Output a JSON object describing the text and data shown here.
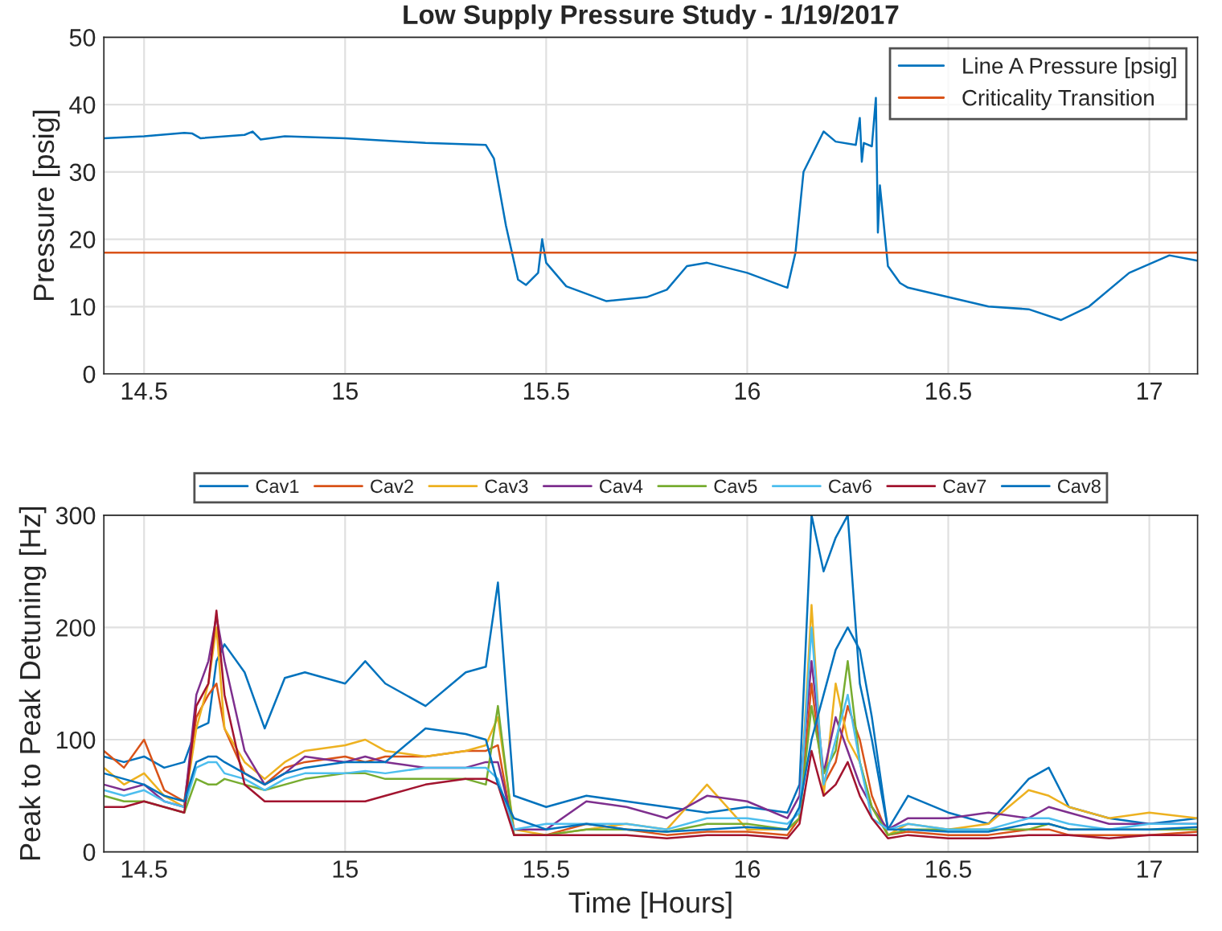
{
  "chart_data": [
    {
      "type": "line",
      "title": "Low Supply Pressure Study - 1/19/2017",
      "ylabel": "Pressure [psig]",
      "x": [
        14.4,
        14.5,
        14.6,
        14.62,
        14.64,
        14.75,
        14.77,
        14.79,
        14.85,
        15.0,
        15.2,
        15.35,
        15.37,
        15.4,
        15.43,
        15.45,
        15.48,
        15.49,
        15.5,
        15.55,
        15.65,
        15.75,
        15.8,
        15.85,
        15.9,
        16.0,
        16.09,
        16.1,
        16.12,
        16.14,
        16.19,
        16.22,
        16.27,
        16.28,
        16.285,
        16.29,
        16.31,
        16.32,
        16.325,
        16.33,
        16.35,
        16.38,
        16.4,
        16.6,
        16.7,
        16.78,
        16.85,
        16.95,
        17.05,
        17.12
      ],
      "series": [
        {
          "name": "Line A Pressure [psig]",
          "color": "#0072bd",
          "values": [
            35,
            35.3,
            35.8,
            35.7,
            35,
            35.5,
            36,
            34.8,
            35.3,
            35,
            34.3,
            34,
            32,
            22,
            14,
            13.2,
            15,
            20,
            16.5,
            13,
            10.8,
            11.4,
            12.5,
            16,
            16.5,
            15,
            13,
            12.8,
            18,
            30,
            36,
            34.5,
            34,
            38,
            31.5,
            34.3,
            33.8,
            41,
            21,
            28,
            16,
            13.5,
            12.8,
            10,
            9.6,
            8,
            10,
            15,
            17.6,
            16.8
          ]
        }
      ],
      "ref_lines": [
        {
          "axis": "y",
          "value": 18,
          "label": "Criticality Transition",
          "color": "#d95319"
        }
      ],
      "xlim": [
        14.4,
        17.12
      ],
      "xticks": [
        14.5,
        15,
        15.5,
        16,
        16.5,
        17
      ],
      "ylim": [
        0,
        50
      ],
      "yticks": [
        0,
        10,
        20,
        30,
        40,
        50
      ],
      "grid": true,
      "legend": "top right"
    },
    {
      "type": "line",
      "xlabel": "Time [Hours]",
      "ylabel": "Peak to Peak Detuning [Hz]",
      "x": [
        14.4,
        14.45,
        14.5,
        14.55,
        14.6,
        14.63,
        14.66,
        14.68,
        14.7,
        14.75,
        14.8,
        14.85,
        14.9,
        15.0,
        15.05,
        15.1,
        15.2,
        15.3,
        15.35,
        15.38,
        15.42,
        15.5,
        15.6,
        15.7,
        15.8,
        15.9,
        16.0,
        16.1,
        16.13,
        16.16,
        16.19,
        16.22,
        16.25,
        16.28,
        16.31,
        16.35,
        16.4,
        16.5,
        16.6,
        16.7,
        16.75,
        16.8,
        16.9,
        17.0,
        17.12
      ],
      "series": [
        {
          "name": "Cav1",
          "color": "#0072bd",
          "values": [
            85,
            80,
            85,
            75,
            80,
            110,
            115,
            170,
            185,
            160,
            110,
            155,
            160,
            150,
            170,
            150,
            130,
            160,
            165,
            240,
            50,
            40,
            50,
            45,
            40,
            35,
            40,
            35,
            60,
            300,
            250,
            280,
            300,
            150,
            100,
            20,
            50,
            35,
            25,
            65,
            75,
            40,
            30,
            25,
            30
          ]
        },
        {
          "name": "Cav2",
          "color": "#d95319",
          "values": [
            90,
            75,
            100,
            55,
            45,
            120,
            140,
            150,
            110,
            70,
            60,
            75,
            80,
            85,
            80,
            85,
            85,
            90,
            90,
            95,
            15,
            15,
            25,
            20,
            15,
            18,
            18,
            15,
            30,
            150,
            60,
            80,
            130,
            100,
            50,
            15,
            18,
            15,
            15,
            20,
            20,
            15,
            15,
            15,
            18
          ]
        },
        {
          "name": "Cav3",
          "color": "#edb120",
          "values": [
            75,
            60,
            70,
            50,
            40,
            110,
            150,
            200,
            110,
            80,
            65,
            80,
            90,
            95,
            100,
            90,
            85,
            90,
            95,
            120,
            20,
            15,
            20,
            25,
            20,
            60,
            20,
            20,
            30,
            220,
            50,
            150,
            100,
            80,
            40,
            15,
            25,
            20,
            25,
            55,
            50,
            40,
            30,
            35,
            30
          ]
        },
        {
          "name": "Cav4",
          "color": "#7e2f8e",
          "values": [
            60,
            55,
            60,
            45,
            40,
            140,
            170,
            210,
            170,
            90,
            60,
            70,
            85,
            80,
            85,
            80,
            75,
            75,
            80,
            80,
            20,
            20,
            45,
            40,
            30,
            50,
            45,
            30,
            50,
            170,
            70,
            120,
            90,
            60,
            40,
            20,
            30,
            30,
            35,
            30,
            40,
            35,
            25,
            25,
            25
          ]
        },
        {
          "name": "Cav5",
          "color": "#77ac30",
          "values": [
            50,
            45,
            45,
            40,
            35,
            65,
            60,
            60,
            65,
            60,
            55,
            60,
            65,
            70,
            70,
            65,
            65,
            65,
            60,
            130,
            15,
            15,
            20,
            20,
            18,
            25,
            25,
            20,
            30,
            130,
            70,
            90,
            170,
            80,
            40,
            15,
            20,
            20,
            20,
            20,
            25,
            20,
            20,
            20,
            20
          ]
        },
        {
          "name": "Cav6",
          "color": "#4dbeee",
          "values": [
            55,
            50,
            55,
            45,
            40,
            75,
            80,
            80,
            70,
            65,
            55,
            65,
            70,
            70,
            72,
            70,
            75,
            75,
            75,
            65,
            20,
            25,
            25,
            25,
            20,
            30,
            30,
            25,
            35,
            200,
            60,
            100,
            140,
            80,
            30,
            20,
            25,
            20,
            20,
            30,
            30,
            25,
            20,
            25,
            25
          ]
        },
        {
          "name": "Cav7",
          "color": "#a2142f",
          "values": [
            40,
            40,
            45,
            40,
            35,
            130,
            150,
            215,
            140,
            60,
            45,
            45,
            45,
            45,
            45,
            50,
            60,
            65,
            65,
            60,
            15,
            15,
            15,
            15,
            12,
            15,
            15,
            12,
            25,
            90,
            50,
            60,
            80,
            50,
            30,
            12,
            15,
            12,
            12,
            15,
            15,
            15,
            12,
            15,
            15
          ]
        },
        {
          "name": "Cav8",
          "color": "#0072bd",
          "values": [
            70,
            65,
            60,
            50,
            45,
            80,
            85,
            85,
            80,
            70,
            60,
            70,
            75,
            80,
            80,
            80,
            110,
            105,
            100,
            60,
            30,
            20,
            25,
            20,
            18,
            20,
            22,
            20,
            40,
            100,
            140,
            180,
            200,
            180,
            120,
            20,
            20,
            18,
            18,
            25,
            25,
            20,
            20,
            20,
            22
          ]
        }
      ],
      "xlim": [
        14.4,
        17.12
      ],
      "xticks": [
        14.5,
        15,
        15.5,
        16,
        16.5,
        17
      ],
      "ylim": [
        0,
        300
      ],
      "yticks": [
        0,
        100,
        200,
        300
      ],
      "grid": true,
      "legend": "top"
    }
  ]
}
